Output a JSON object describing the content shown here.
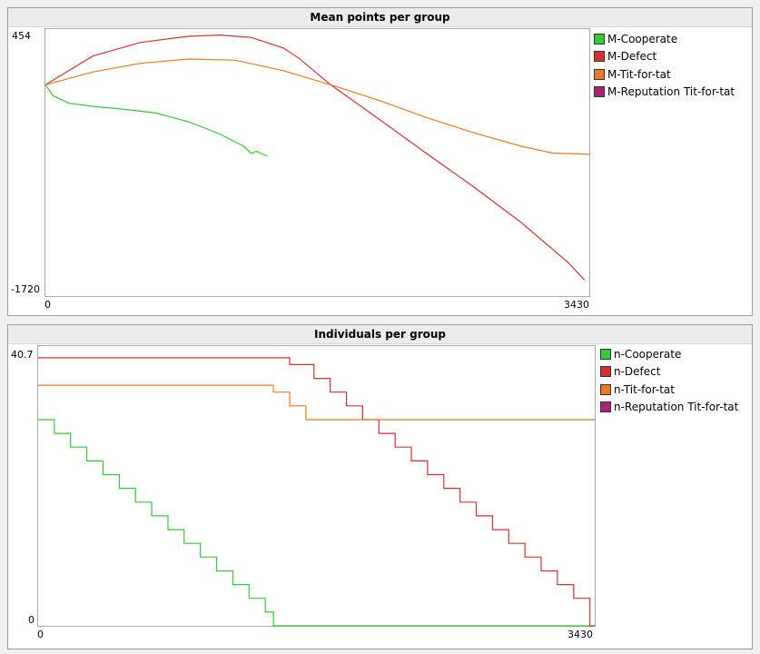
{
  "colors": {
    "cooperate": "#33cc33",
    "defect": "#d83030",
    "tft": "#ee7722",
    "reputation": "#aa2277"
  },
  "charts": [
    {
      "chart_data": {
        "type": "line",
        "title": "Mean points per group",
        "xlabel": "",
        "ylabel": "",
        "xlim": [
          0,
          3430
        ],
        "ylim": [
          -1720,
          454
        ],
        "x_tick_labels": [
          "0",
          "3430"
        ],
        "y_tick_labels": [
          "454",
          "-1720"
        ],
        "legend_position": "right",
        "series": [
          {
            "name": "M-Cooperate",
            "color": "cooperate",
            "x": [
              0,
              50,
              150,
              300,
              500,
              700,
              900,
              1100,
              1250,
              1300,
              1330,
              1380,
              1400
            ],
            "y": [
              0,
              -90,
              -150,
              -175,
              -200,
              -230,
              -300,
              -400,
              -500,
              -560,
              -540,
              -570,
              -580
            ]
          },
          {
            "name": "M-Defect",
            "color": "defect",
            "x": [
              0,
              300,
              600,
              900,
              1100,
              1300,
              1500,
              1600,
              1800,
              2100,
              2400,
              2700,
              3000,
              3200,
              3300,
              3400
            ],
            "y": [
              0,
              235,
              345,
              395,
              405,
              385,
              300,
              215,
              0,
              -275,
              -555,
              -830,
              -1120,
              -1340,
              -1450,
              -1590
            ]
          },
          {
            "name": "M-Tit-for-tat",
            "color": "tft",
            "x": [
              0,
              300,
              600,
              900,
              1200,
              1500,
              1800,
              2100,
              2400,
              2700,
              3000,
              3200,
              3430
            ],
            "y": [
              0,
              105,
              175,
              210,
              200,
              115,
              0,
              -125,
              -265,
              -390,
              -500,
              -555,
              -565
            ]
          },
          {
            "name": "M-Reputation Tit-for-tat",
            "color": "reputation",
            "x": [],
            "y": []
          }
        ]
      }
    },
    {
      "chart_data": {
        "type": "line",
        "title": "Individuals per group",
        "xlabel": "",
        "ylabel": "",
        "xlim": [
          0,
          3430
        ],
        "ylim": [
          0,
          40.7
        ],
        "x_tick_labels": [
          "0",
          "3430"
        ],
        "y_tick_labels": [
          "40.7",
          "0"
        ],
        "legend_position": "right",
        "steps_per_unit": "1 individual",
        "series": [
          {
            "name": "n-Cooperate",
            "color": "cooperate",
            "steps": [
              [
                0,
                30
              ],
              [
                100,
                28
              ],
              [
                200,
                26
              ],
              [
                300,
                24
              ],
              [
                400,
                22
              ],
              [
                500,
                20
              ],
              [
                600,
                18
              ],
              [
                700,
                16
              ],
              [
                800,
                14
              ],
              [
                900,
                12
              ],
              [
                1000,
                10
              ],
              [
                1100,
                8
              ],
              [
                1200,
                6
              ],
              [
                1300,
                4
              ],
              [
                1400,
                2
              ],
              [
                1450,
                0
              ]
            ],
            "end": 3430
          },
          {
            "name": "n-Defect",
            "color": "defect",
            "steps": [
              [
                0,
                39
              ],
              [
                1550,
                38
              ],
              [
                1700,
                36
              ],
              [
                1800,
                34
              ],
              [
                1900,
                32
              ],
              [
                2000,
                30
              ],
              [
                2100,
                28
              ],
              [
                2200,
                26
              ],
              [
                2300,
                24
              ],
              [
                2400,
                22
              ],
              [
                2500,
                20
              ],
              [
                2600,
                18
              ],
              [
                2700,
                16
              ],
              [
                2800,
                14
              ],
              [
                2900,
                12
              ],
              [
                3000,
                10
              ],
              [
                3100,
                8
              ],
              [
                3200,
                6
              ],
              [
                3300,
                4
              ],
              [
                3400,
                0
              ]
            ],
            "end": 3430
          },
          {
            "name": "n-Tit-for-tat",
            "color": "tft",
            "steps": [
              [
                0,
                35
              ],
              [
                1450,
                34
              ],
              [
                1550,
                32
              ],
              [
                1650,
                30
              ]
            ],
            "end": 3430
          },
          {
            "name": "n-Reputation Tit-for-tat",
            "color": "reputation",
            "steps": [],
            "end": 3430
          }
        ]
      }
    }
  ]
}
